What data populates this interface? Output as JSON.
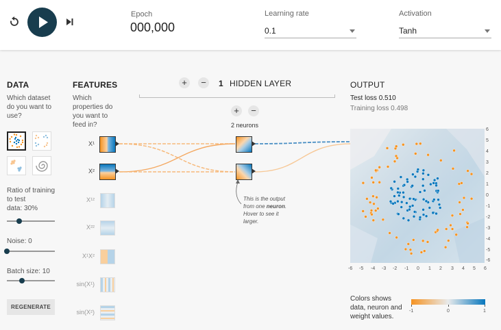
{
  "controls": {
    "epoch_label": "Epoch",
    "epoch_value": "000,000",
    "learning_rate_label": "Learning rate",
    "learning_rate_value": "0.1",
    "activation_label": "Activation",
    "activation_value": "Tanh",
    "reset_icon": "reset-icon",
    "play_icon": "play-icon",
    "step_icon": "step-forward-icon",
    "play_color": "#183d4e"
  },
  "data": {
    "heading": "DATA",
    "prompt": [
      "Which dataset",
      "do you want to",
      "use?"
    ],
    "datasets": [
      "circle",
      "xor",
      "gaussian",
      "spiral"
    ],
    "selected_dataset": "circle",
    "ratio_label": [
      "Ratio of training",
      "to test",
      "data:  30%"
    ],
    "ratio_value": 30,
    "noise_label": "Noise:  0",
    "noise_value": 0,
    "batch_label": "Batch size:  10",
    "batch_value": 10,
    "regenerate_label": "REGENERATE"
  },
  "features": {
    "heading": "FEATURES",
    "prompt": [
      "Which",
      "properties do",
      "you want to",
      "feed in?"
    ],
    "items": [
      {
        "label": "X¹",
        "active": true
      },
      {
        "label": "X²",
        "active": true
      },
      {
        "label": "X¹²",
        "active": false
      },
      {
        "label": "X²²",
        "active": false
      },
      {
        "label": "X¹X²",
        "active": false
      },
      {
        "label": "sin(X¹)",
        "active": false
      },
      {
        "label": "sin(X²)",
        "active": false
      }
    ]
  },
  "network": {
    "layer_count": "1",
    "layers_label": "HIDDEN LAYER",
    "neurons_label": "2 neurons",
    "tooltip": [
      "This is the output",
      "from one ",
      "neuron",
      ".",
      "Hover to see it",
      "larger."
    ]
  },
  "output": {
    "heading": "OUTPUT",
    "test_loss_label": "Test loss",
    "test_loss_value": "0.510",
    "training_loss_label": "Training loss",
    "training_loss_value": "0.498",
    "legend_text": [
      "Colors shows",
      "data, neuron and",
      "weight values."
    ],
    "legend_ticks": [
      "-1",
      "0",
      "1"
    ],
    "legend_colors": {
      "negative": "#f59322",
      "neutral": "#e8eaeb",
      "positive": "#0877bd"
    },
    "y_ticks": [
      "6",
      "5",
      "4",
      "3",
      "2",
      "1",
      "0",
      "-1",
      "-2",
      "-3",
      "-4",
      "-5",
      "-6"
    ],
    "x_ticks": [
      "-6",
      "-5",
      "-4",
      "-3",
      "-2",
      "-1",
      "0",
      "1",
      "2",
      "3",
      "4",
      "5",
      "6"
    ]
  }
}
